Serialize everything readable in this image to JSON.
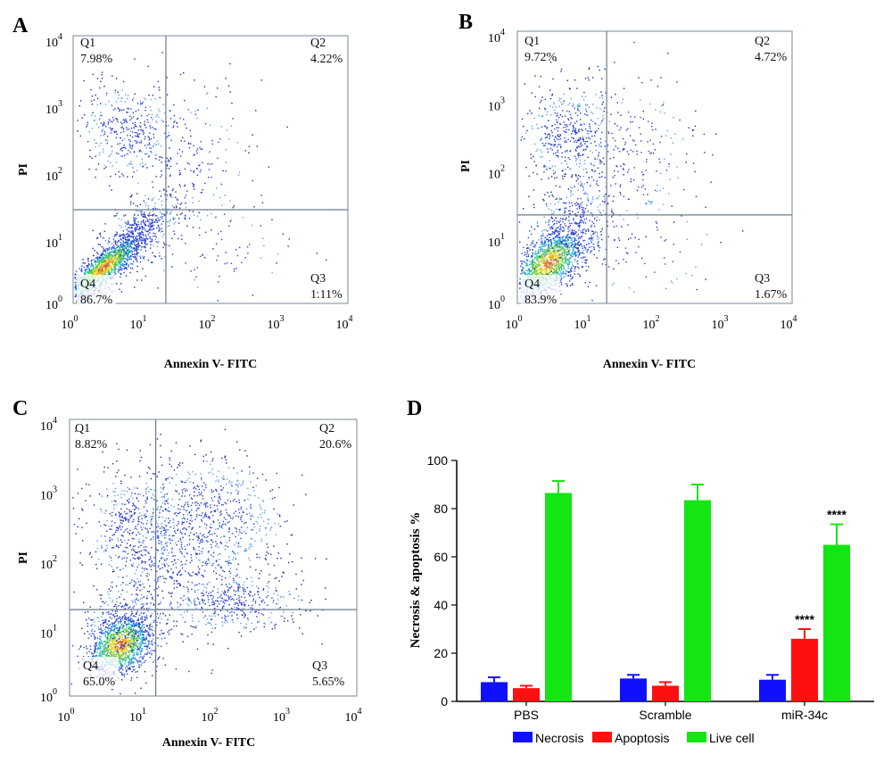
{
  "chart_data": [
    {
      "panel": "A",
      "type": "scatter",
      "xlabel": "Annexin V- FITC",
      "ylabel": "PI",
      "x_ticks": [
        "0",
        "1",
        "2",
        "3",
        "4"
      ],
      "y_ticks": [
        "0",
        "1",
        "2",
        "3",
        "4"
      ],
      "quadrants": [
        {
          "name": "Q1",
          "value": "7.98%"
        },
        {
          "name": "Q2",
          "value": "4.22%"
        },
        {
          "name": "Q3",
          "value": "1.11%"
        },
        {
          "name": "Q4",
          "value": "86.7%"
        }
      ],
      "gate": {
        "x": 1.35,
        "y": 1.4
      },
      "xlim": [
        0,
        4
      ],
      "ylim": [
        0,
        4
      ],
      "x_scale": "log",
      "y_scale": "log"
    },
    {
      "panel": "B",
      "type": "scatter",
      "xlabel": "Annexin V- FITC",
      "ylabel": "PI",
      "x_ticks": [
        "0",
        "1",
        "2",
        "3",
        "4"
      ],
      "y_ticks": [
        "0",
        "1",
        "2",
        "3",
        "4"
      ],
      "quadrants": [
        {
          "name": "Q1",
          "value": "9.72%"
        },
        {
          "name": "Q2",
          "value": "4.72%"
        },
        {
          "name": "Q3",
          "value": "1.67%"
        },
        {
          "name": "Q4",
          "value": "83.9%"
        }
      ],
      "gate": {
        "x": 1.3,
        "y": 1.3
      },
      "xlim": [
        0,
        4
      ],
      "ylim": [
        0,
        4
      ],
      "x_scale": "log",
      "y_scale": "log"
    },
    {
      "panel": "C",
      "type": "scatter",
      "xlabel": "Annexin V- FITC",
      "ylabel": "PI",
      "x_ticks": [
        "0",
        "1",
        "2",
        "3",
        "4"
      ],
      "y_ticks": [
        "0",
        "1",
        "2",
        "3",
        "4"
      ],
      "quadrants": [
        {
          "name": "Q1",
          "value": "8.82%"
        },
        {
          "name": "Q2",
          "value": "20.6%"
        },
        {
          "name": "Q3",
          "value": "5.65%"
        },
        {
          "name": "Q4",
          "value": "65.0%"
        }
      ],
      "gate": {
        "x": 1.2,
        "y": 1.25
      },
      "xlim": [
        0,
        4
      ],
      "ylim": [
        0,
        4
      ],
      "x_scale": "log",
      "y_scale": "log"
    },
    {
      "panel": "D",
      "type": "bar",
      "ylabel": "Necrosis & apoptosis %",
      "categories": [
        "PBS",
        "Scramble",
        "miR-34c"
      ],
      "ylim": [
        0,
        100
      ],
      "y_ticks": [
        0,
        20,
        40,
        60,
        80,
        100
      ],
      "series": [
        {
          "name": "Necrosis",
          "color": "#1010ff",
          "values": [
            8,
            9.5,
            9
          ],
          "errors": [
            2,
            1.5,
            2
          ]
        },
        {
          "name": "Apoptosis",
          "color": "#ff1010",
          "values": [
            5.5,
            6.5,
            26
          ],
          "errors": [
            1,
            1.5,
            4
          ]
        },
        {
          "name": "Live cell",
          "color": "#14e614",
          "values": [
            86.5,
            83.5,
            65
          ],
          "errors": [
            5,
            6.5,
            8.5
          ]
        }
      ],
      "annotations": [
        {
          "category": "miR-34c",
          "series": "Apoptosis",
          "text": "****"
        },
        {
          "category": "miR-34c",
          "series": "Live cell",
          "text": "****"
        }
      ],
      "legend": "bottom"
    }
  ]
}
